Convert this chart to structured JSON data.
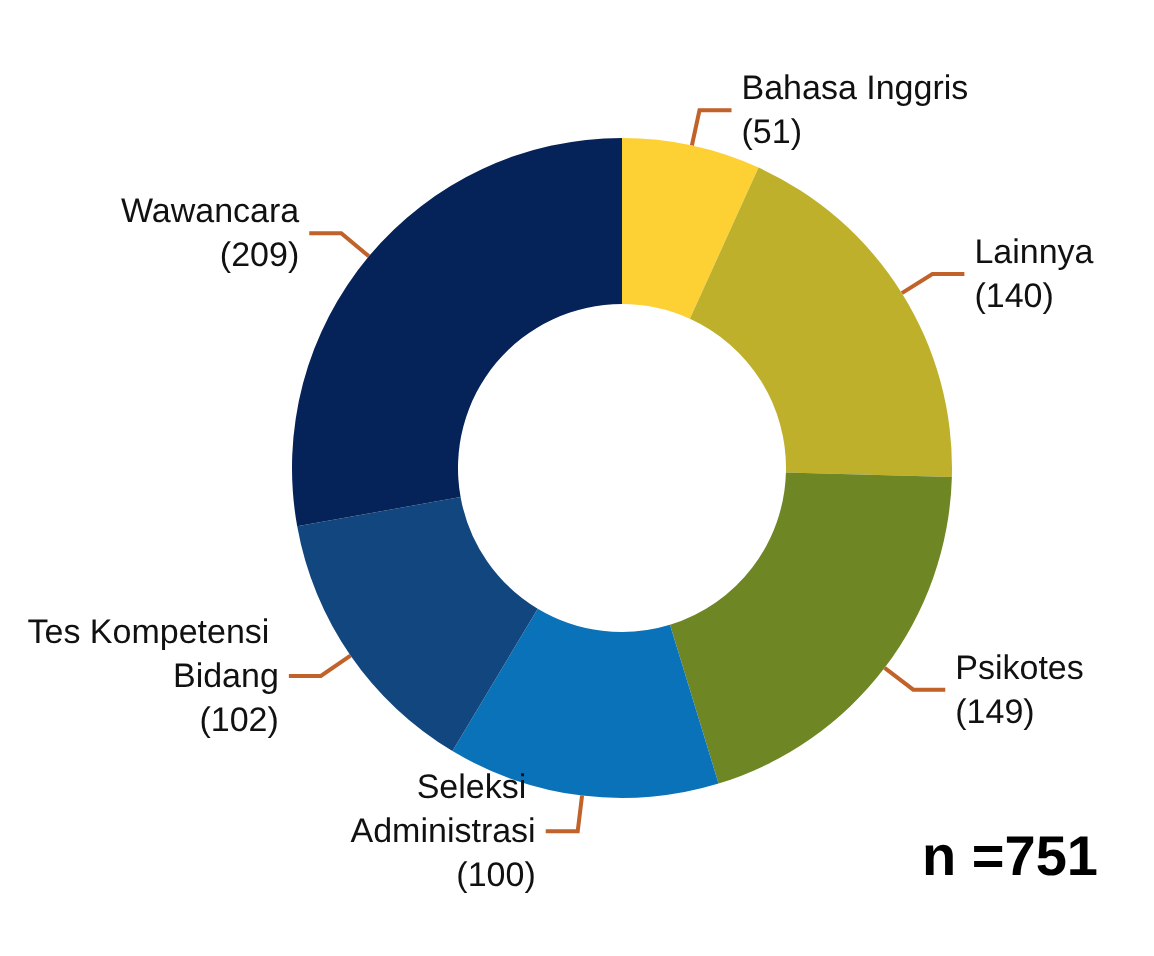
{
  "chart_data": {
    "type": "donut",
    "categories": [
      "Bahasa Inggris",
      "Lainnya",
      "Psikotes",
      "Seleksi Administrasi",
      "Tes Kompetensi Bidang",
      "Wawancara"
    ],
    "values": [
      51,
      140,
      149,
      100,
      102,
      209
    ],
    "value_labels": [
      "(51)",
      "(140)",
      "(149)",
      "(100)",
      "(102)",
      "(209)"
    ],
    "colors": [
      "#fdd034",
      "#bfb02c",
      "#6f8624",
      "#0a72b8",
      "#12467e",
      "#052358"
    ],
    "annotations": [
      "n =751"
    ],
    "legend": false
  }
}
